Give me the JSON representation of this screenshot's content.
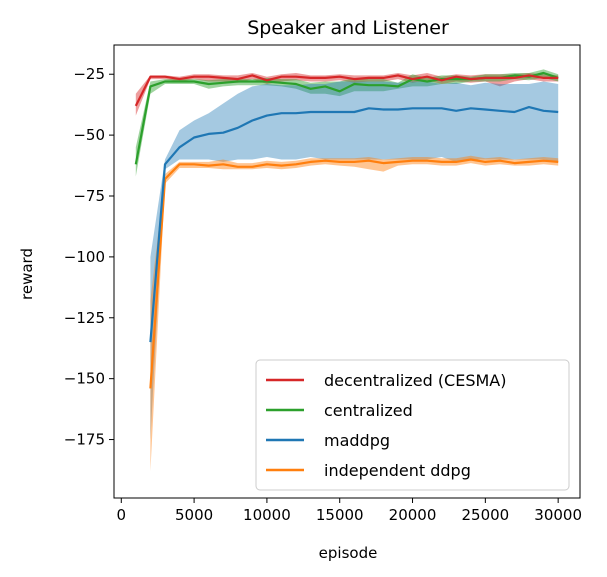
{
  "chart_data": {
    "type": "line",
    "title": "Speaker and Listener",
    "xlabel": "episode",
    "ylabel": "reward",
    "xlim": [
      -500,
      31500
    ],
    "ylim": [
      -199,
      -13
    ],
    "xticks": [
      0,
      5000,
      10000,
      15000,
      20000,
      25000,
      30000
    ],
    "yticks": [
      -25,
      -50,
      -75,
      -100,
      -125,
      -150,
      -175
    ],
    "xtick_labels": [
      "0",
      "5000",
      "10000",
      "15000",
      "20000",
      "25000",
      "30000"
    ],
    "ytick_labels": [
      "−25",
      "−50",
      "−75",
      "−100",
      "−125",
      "−150",
      "−175"
    ],
    "grid": false,
    "legend_position": "lower-right",
    "series": [
      {
        "name": "decentralized (CESMA)",
        "color": "#d62728",
        "x": [
          1000,
          2000,
          3000,
          4000,
          5000,
          6000,
          7000,
          8000,
          9000,
          10000,
          11000,
          12000,
          13000,
          14000,
          15000,
          16000,
          17000,
          18000,
          19000,
          20000,
          21000,
          22000,
          23000,
          24000,
          25000,
          26000,
          27000,
          28000,
          29000,
          30000
        ],
        "y": [
          -38,
          -26,
          -26,
          -27,
          -26,
          -26,
          -26.5,
          -27,
          -25.5,
          -27.5,
          -26,
          -26,
          -26.5,
          -26.5,
          -26,
          -27,
          -26.5,
          -26.5,
          -25.5,
          -27,
          -26,
          -27.5,
          -26,
          -27,
          -26.5,
          -26.5,
          -26.5,
          -25.5,
          -26.5,
          -26.5
        ],
        "lower": [
          -42,
          -27,
          -27,
          -28,
          -27,
          -28,
          -28,
          -28.5,
          -27,
          -29,
          -28,
          -27.5,
          -28,
          -28,
          -27.5,
          -28.5,
          -28,
          -28,
          -27,
          -28.5,
          -27.5,
          -29,
          -28,
          -28.5,
          -28,
          -30,
          -28,
          -27,
          -28,
          -28
        ],
        "upper": [
          -33,
          -25.5,
          -25.5,
          -26,
          -25,
          -25,
          -25.5,
          -25.5,
          -24.5,
          -26,
          -25,
          -24.5,
          -25.5,
          -25.5,
          -25,
          -25.5,
          -25.5,
          -25.5,
          -24.5,
          -25.5,
          -24.5,
          -26,
          -25,
          -25.5,
          -25,
          -25,
          -25,
          -24.5,
          -25,
          -25.5
        ]
      },
      {
        "name": "centralized",
        "color": "#2ca02c",
        "x": [
          1000,
          2000,
          3000,
          4000,
          5000,
          6000,
          7000,
          8000,
          9000,
          10000,
          11000,
          12000,
          13000,
          14000,
          15000,
          16000,
          17000,
          18000,
          19000,
          20000,
          21000,
          22000,
          23000,
          24000,
          25000,
          26000,
          27000,
          28000,
          29000,
          30000
        ],
        "y": [
          -62,
          -30,
          -28,
          -28,
          -28,
          -29,
          -28.5,
          -28,
          -28,
          -28,
          -28.5,
          -29,
          -31,
          -30,
          -32,
          -29,
          -29.5,
          -29.5,
          -30,
          -27,
          -28,
          -27,
          -27,
          -27,
          -26.5,
          -26.5,
          -25.5,
          -26,
          -24.5,
          -26.5
        ],
        "lower": [
          -67,
          -33,
          -29,
          -29,
          -29,
          -31,
          -30,
          -29.5,
          -29.5,
          -29.5,
          -30,
          -31,
          -33,
          -33,
          -34,
          -32,
          -32,
          -32,
          -31,
          -30,
          -30,
          -29,
          -29,
          -28,
          -28,
          -28,
          -27,
          -27.5,
          -26.5,
          -28
        ],
        "upper": [
          -55,
          -28,
          -27,
          -27,
          -27,
          -27.5,
          -27,
          -27,
          -27,
          -26.5,
          -27,
          -27,
          -28.5,
          -28,
          -28,
          -26.5,
          -27,
          -27,
          -28.5,
          -25,
          -26.5,
          -25.5,
          -25.5,
          -26,
          -25,
          -25,
          -24.5,
          -24.5,
          -23,
          -25
        ]
      },
      {
        "name": "maddpg",
        "color": "#1f77b4",
        "x": [
          2000,
          3000,
          4000,
          5000,
          6000,
          7000,
          8000,
          9000,
          10000,
          11000,
          12000,
          13000,
          14000,
          15000,
          16000,
          17000,
          18000,
          19000,
          20000,
          21000,
          22000,
          23000,
          24000,
          25000,
          26000,
          27000,
          28000,
          29000,
          30000
        ],
        "y": [
          -135,
          -62,
          -55,
          -51,
          -49.5,
          -49,
          -47,
          -44,
          -42,
          -41,
          -41,
          -40.5,
          -40.5,
          -40.5,
          -40.5,
          -39,
          -39.5,
          -39.5,
          -39,
          -39,
          -39,
          -40,
          -39,
          -39.5,
          -40,
          -40.5,
          -38.5,
          -40,
          -40.5
        ],
        "lower": [
          -175,
          -64,
          -60,
          -60,
          -60,
          -61,
          -60,
          -60,
          -59,
          -60,
          -60,
          -59,
          -60,
          -60,
          -60,
          -60,
          -60,
          -60,
          -60,
          -60,
          -59,
          -61,
          -60,
          -60,
          -60,
          -60,
          -60,
          -60,
          -61
        ],
        "upper": [
          -100,
          -60,
          -48,
          -44,
          -41,
          -37,
          -33,
          -30,
          -29,
          -29.5,
          -29.5,
          -29,
          -29,
          -28,
          -28,
          -28,
          -28,
          -28.5,
          -28,
          -28,
          -29,
          -28.5,
          -29.5,
          -28.5,
          -29,
          -29,
          -29,
          -28,
          -29
        ]
      },
      {
        "name": "independent ddpg",
        "color": "#ff7f0e",
        "x": [
          2000,
          3000,
          4000,
          5000,
          6000,
          7000,
          8000,
          9000,
          10000,
          11000,
          12000,
          13000,
          14000,
          15000,
          16000,
          17000,
          18000,
          19000,
          20000,
          21000,
          22000,
          23000,
          24000,
          25000,
          26000,
          27000,
          28000,
          29000,
          30000
        ],
        "y": [
          -154,
          -68,
          -62,
          -62,
          -62.5,
          -62,
          -63,
          -63,
          -62,
          -62.5,
          -62,
          -61,
          -60.5,
          -61,
          -61,
          -60.5,
          -61.5,
          -61,
          -60.5,
          -60.5,
          -61,
          -61,
          -60,
          -61,
          -60.5,
          -61.5,
          -61,
          -60.5,
          -61
        ],
        "lower": [
          -188,
          -70,
          -63.5,
          -63.5,
          -63.5,
          -64,
          -64,
          -64,
          -63.5,
          -64,
          -63.5,
          -62.5,
          -62,
          -62.5,
          -63,
          -64,
          -65,
          -62.5,
          -62,
          -62,
          -62.5,
          -62.5,
          -61.5,
          -62.5,
          -62,
          -62.5,
          -62.5,
          -62,
          -62.5
        ],
        "upper": [
          -118,
          -66,
          -61,
          -61,
          -61,
          -60,
          -61.5,
          -61.5,
          -60.5,
          -61,
          -60.5,
          -59.5,
          -59.5,
          -59.5,
          -59.5,
          -59,
          -60,
          -59.5,
          -59,
          -59,
          -59.5,
          -59.5,
          -58.5,
          -59.5,
          -59,
          -60,
          -59.5,
          -59,
          -59.5
        ]
      }
    ]
  }
}
